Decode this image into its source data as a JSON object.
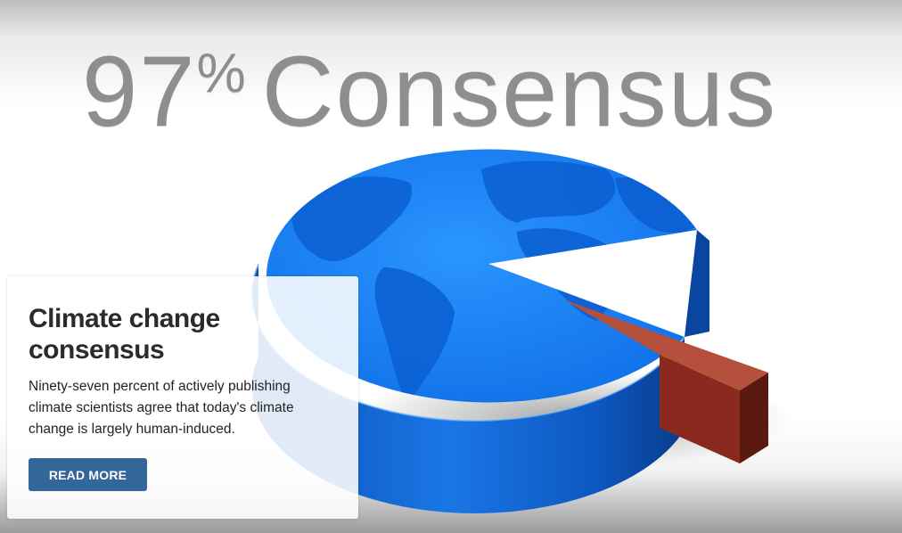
{
  "hero": {
    "title_number": "97",
    "title_percent": "%",
    "title_word": "Consensus"
  },
  "card": {
    "title": "Climate change consensus",
    "description": "Ninety-seven percent of actively publishing climate scientists agree that today's climate change is largely human-induced.",
    "button_label": "READ MORE"
  },
  "colors": {
    "globe_blue": "#1a82f5",
    "slice_red": "#a33a2a",
    "button_blue": "#336699",
    "title_gray": "#8e8e8e"
  }
}
